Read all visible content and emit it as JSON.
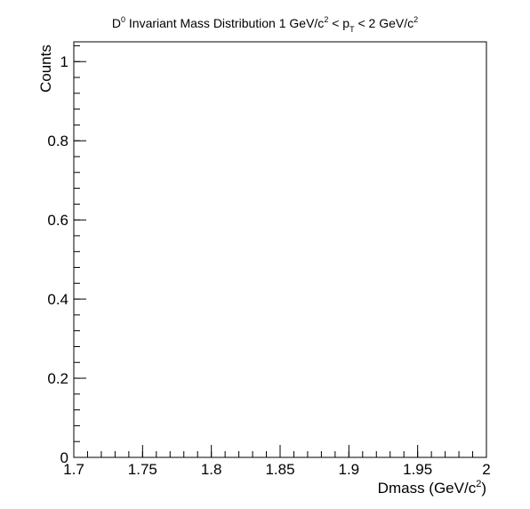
{
  "chart_data": {
    "type": "line",
    "title": "D⁰ Invariant Mass Distribution 1 GeV/c² < p_T < 2 GeV/c²",
    "title_parts": {
      "d": "D",
      "d_sup": "0",
      "text1": " Invariant Mass Distribution 1 GeV/c",
      "sup1": "2",
      "text2": " < p",
      "sub": "T",
      "text3": " < 2 GeV/c",
      "sup2": "2"
    },
    "xlabel": "Dmass (GeV/c²)",
    "xlabel_parts": {
      "text": "Dmass (GeV/c",
      "sup": "2",
      "close": ")"
    },
    "ylabel": "Counts",
    "xlim": [
      1.7,
      2.0
    ],
    "ylim": [
      0,
      1.05
    ],
    "x_ticks": [
      1.7,
      1.75,
      1.8,
      1.85,
      1.9,
      1.95,
      2.0
    ],
    "x_tick_labels": [
      "1.7",
      "1.75",
      "1.8",
      "1.85",
      "1.9",
      "1.95",
      "2"
    ],
    "x_minor_step": 0.01,
    "y_ticks": [
      0,
      0.2,
      0.4,
      0.6,
      0.8,
      1.0
    ],
    "y_tick_labels": [
      "0",
      "0.2",
      "0.4",
      "0.6",
      "0.8",
      "1"
    ],
    "y_minor_step": 0.04,
    "grid": false,
    "series": []
  }
}
